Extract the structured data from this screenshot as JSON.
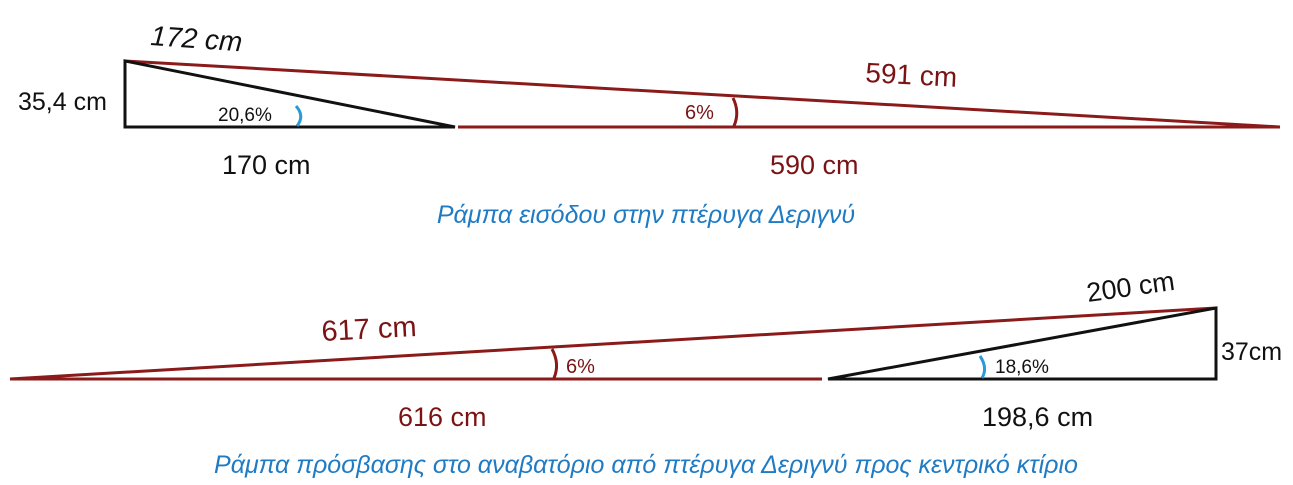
{
  "colors": {
    "black": "#111111",
    "dark_red": "#7a1414",
    "line_red": "#8b1a1a",
    "angle_blue": "#2a9ad8",
    "caption_blue": "#1f7bc4"
  },
  "diagram1": {
    "short_hyp": "172 cm",
    "short_height": "35,4 cm",
    "short_base": "170 cm",
    "short_angle": "20,6%",
    "long_hyp": "591 cm",
    "long_base": "590 cm",
    "long_angle": "6%",
    "caption": "Ράμπα εισόδου στην πτέρυγα Δεριγνύ"
  },
  "diagram2": {
    "long_hyp": "617 cm",
    "long_base": "616 cm",
    "long_angle": "6%",
    "short_hyp": "200 cm",
    "short_height": "37cm",
    "short_base": "198,6 cm",
    "short_angle": "18,6%",
    "caption": "Ράμπα πρόσβασης στο αναβατόριο από πτέρυγα Δεριγνύ προς κεντρικό κτίριο"
  }
}
